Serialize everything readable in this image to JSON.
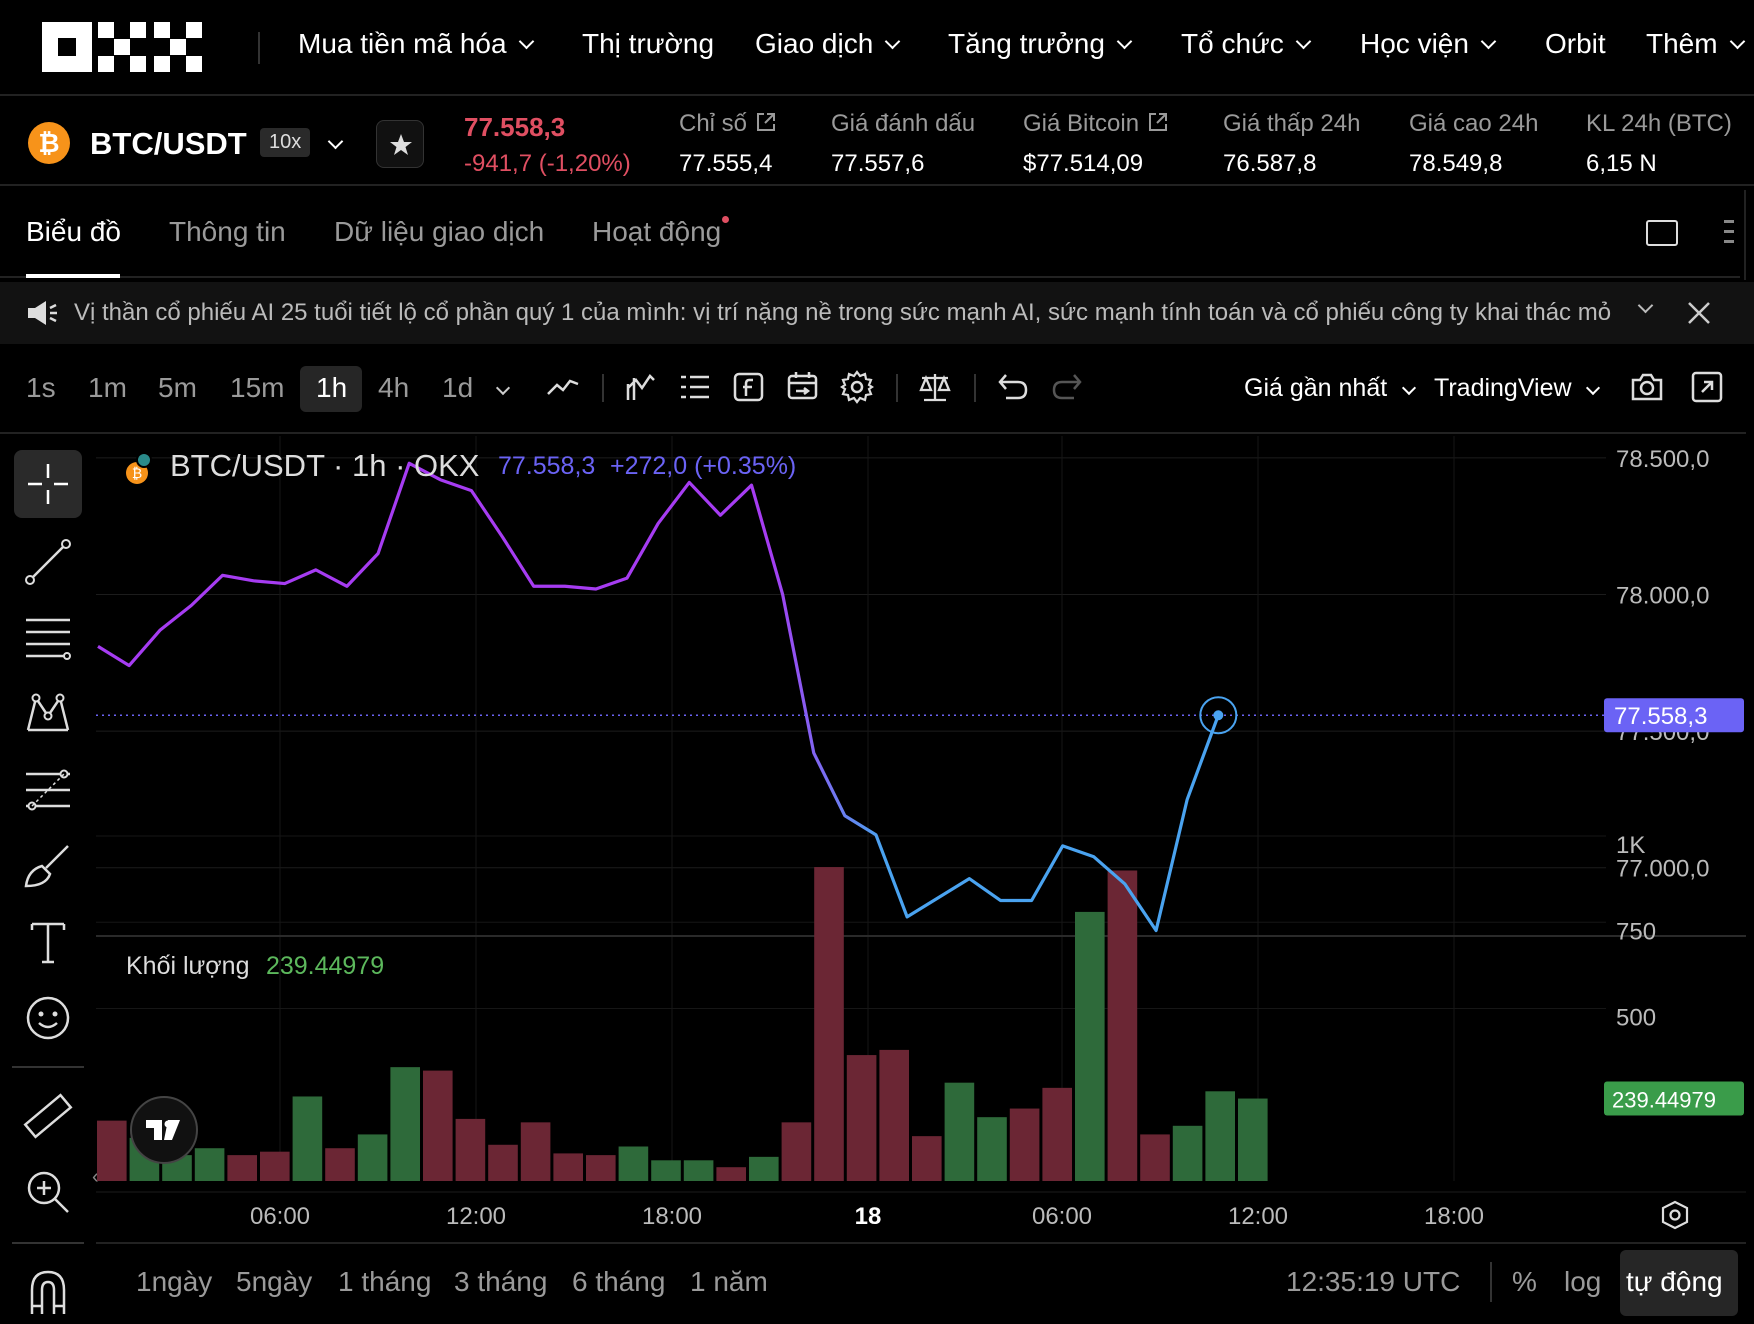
{
  "nav": {
    "logo": "OKX",
    "items": [
      {
        "label": "Mua tiền mã hóa",
        "dropdown": true
      },
      {
        "label": "Thị trường",
        "dropdown": false
      },
      {
        "label": "Giao dịch",
        "dropdown": true
      },
      {
        "label": "Tăng trưởng",
        "dropdown": true
      },
      {
        "label": "Tổ chức",
        "dropdown": true
      },
      {
        "label": "Học viện",
        "dropdown": true
      },
      {
        "label": "Orbit",
        "dropdown": false
      },
      {
        "label": "Thêm",
        "dropdown": true
      }
    ]
  },
  "ticker": {
    "pair": "BTC/USDT",
    "leverage": "10x",
    "last_price": "77.558,3",
    "change": "-941,7 (-1,20%)",
    "stats": [
      {
        "label": "Chỉ số",
        "value": "77.555,4",
        "external": true
      },
      {
        "label": "Giá đánh dấu",
        "value": "77.557,6",
        "external": false
      },
      {
        "label": "Giá Bitcoin",
        "value": "$77.514,09",
        "external": true
      },
      {
        "label": "Giá thấp 24h",
        "value": "76.587,8",
        "external": false
      },
      {
        "label": "Giá cao 24h",
        "value": "78.549,8",
        "external": false
      },
      {
        "label": "KL 24h (BTC)",
        "value": "6,15 N",
        "external": false
      }
    ]
  },
  "tabs": [
    {
      "label": "Biểu đồ",
      "active": true
    },
    {
      "label": "Thông tin",
      "active": false
    },
    {
      "label": "Dữ liệu giao dịch",
      "active": false
    },
    {
      "label": "Hoạt động",
      "active": false
    }
  ],
  "announcement": {
    "text": "Vị thần cổ phiếu AI 25 tuổi tiết lộ cổ phần quý 1 của mình: vị trí nặng nề trong sức mạnh AI, sức mạnh tính toán và cổ phiếu công ty khai thác mỏ"
  },
  "toolbar": {
    "timeframes": [
      {
        "label": "1s",
        "active": false
      },
      {
        "label": "1m",
        "active": false
      },
      {
        "label": "5m",
        "active": false
      },
      {
        "label": "15m",
        "active": false
      },
      {
        "label": "1h",
        "active": true
      },
      {
        "label": "4h",
        "active": false
      },
      {
        "label": "1d",
        "active": false
      }
    ],
    "price_type": "Giá gần nhất",
    "chart_engine": "TradingView"
  },
  "chart_header": {
    "title": "BTC/USDT · 1h · OKX",
    "price": "77.558,3",
    "change": "+272,0 (+0.35%)"
  },
  "volume_header": {
    "label": "Khối lượng",
    "value": "239.44979"
  },
  "colors": {
    "up": "#2e6a3a",
    "down": "#6b2634",
    "line_start": "#a63cf2",
    "line_end": "#4aa3f0",
    "price_badge": "#6b63f5",
    "volume_badge": "#3a9c4a",
    "negative": "#e04f62"
  },
  "chart_data": {
    "type": "line",
    "price_axis": {
      "ticks": [
        "78.500,0",
        "78.000,0",
        "77.500,0",
        "77.000,0"
      ],
      "tick_values": [
        78500,
        78000,
        77500,
        77000
      ],
      "ylim": [
        76750,
        78580
      ]
    },
    "time_axis": [
      "06:00",
      "12:00",
      "18:00",
      "18",
      "06:00",
      "12:00",
      "18:00"
    ],
    "last_price_label": "77.558,3",
    "price_series": [
      77810,
      77740,
      77870,
      77960,
      78070,
      78050,
      78040,
      78090,
      78030,
      78150,
      78480,
      78420,
      78380,
      78210,
      78030,
      78030,
      78020,
      78060,
      78260,
      78410,
      78290,
      78400,
      78000,
      77420,
      77190,
      77120,
      76820,
      76890,
      76960,
      76880,
      76880,
      77080,
      77040,
      76940,
      76770,
      77250,
      77558
    ],
    "volume_axis": {
      "ticks": [
        "1K",
        "750",
        "500"
      ],
      "tick_values": [
        1000,
        750,
        500
      ],
      "ylim": [
        0,
        1000
      ]
    },
    "volume_label": "239.44979",
    "volume_series": [
      {
        "v": 175,
        "up": false
      },
      {
        "v": 125,
        "up": true
      },
      {
        "v": 75,
        "up": true
      },
      {
        "v": 95,
        "up": true
      },
      {
        "v": 75,
        "up": false
      },
      {
        "v": 85,
        "up": false
      },
      {
        "v": 245,
        "up": true
      },
      {
        "v": 95,
        "up": false
      },
      {
        "v": 135,
        "up": true
      },
      {
        "v": 330,
        "up": true
      },
      {
        "v": 320,
        "up": false
      },
      {
        "v": 180,
        "up": false
      },
      {
        "v": 105,
        "up": false
      },
      {
        "v": 170,
        "up": false
      },
      {
        "v": 80,
        "up": false
      },
      {
        "v": 75,
        "up": false
      },
      {
        "v": 100,
        "up": true
      },
      {
        "v": 60,
        "up": true
      },
      {
        "v": 60,
        "up": true
      },
      {
        "v": 40,
        "up": false
      },
      {
        "v": 70,
        "up": true
      },
      {
        "v": 170,
        "up": false
      },
      {
        "v": 910,
        "up": false
      },
      {
        "v": 365,
        "up": false
      },
      {
        "v": 380,
        "up": false
      },
      {
        "v": 130,
        "up": false
      },
      {
        "v": 285,
        "up": true
      },
      {
        "v": 185,
        "up": true
      },
      {
        "v": 210,
        "up": false
      },
      {
        "v": 270,
        "up": false
      },
      {
        "v": 780,
        "up": true
      },
      {
        "v": 900,
        "up": false
      },
      {
        "v": 135,
        "up": false
      },
      {
        "v": 160,
        "up": true
      },
      {
        "v": 260,
        "up": true
      },
      {
        "v": 239,
        "up": true
      }
    ]
  },
  "bottom": {
    "ranges": [
      "1ngày",
      "5ngày",
      "1 tháng",
      "3 tháng",
      "6 tháng",
      "1 năm"
    ],
    "clock": "12:35:19 UTC",
    "percent": "%",
    "log": "log",
    "auto": "tự động"
  }
}
